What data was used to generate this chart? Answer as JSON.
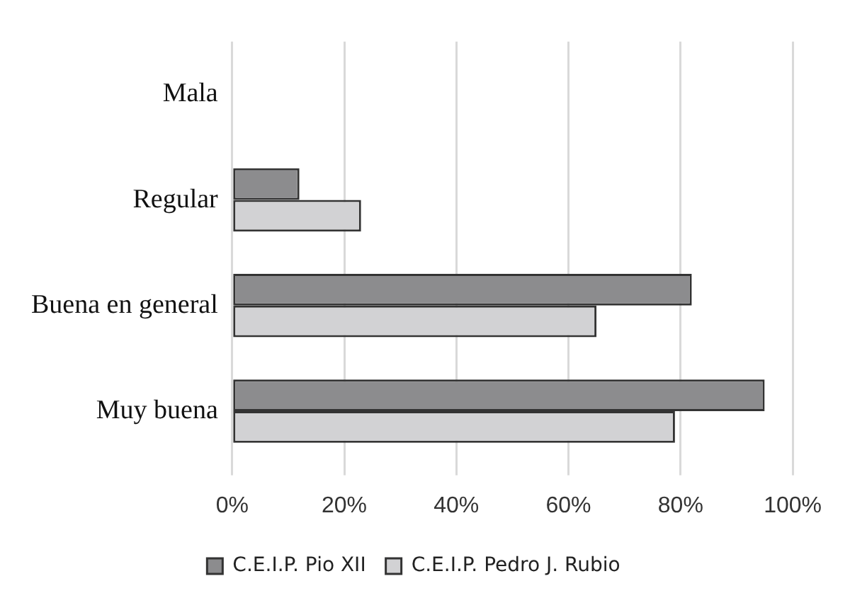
{
  "chart_data": {
    "type": "bar",
    "orientation": "horizontal",
    "categories": [
      "Mala",
      "Regular",
      "Buena en general",
      "Muy buena"
    ],
    "series": [
      {
        "name": "C.E.I.P. Pio XII",
        "color": "#8c8c8e",
        "values": [
          0,
          12,
          82,
          95
        ]
      },
      {
        "name": "C.E.I.P. Pedro J. Rubio",
        "color": "#d2d2d4",
        "values": [
          0,
          23,
          65,
          79
        ]
      }
    ],
    "xlim": [
      0,
      100
    ],
    "xticks": [
      {
        "value": 0,
        "label": "0%"
      },
      {
        "value": 20,
        "label": "20%"
      },
      {
        "value": 40,
        "label": "40%"
      },
      {
        "value": 60,
        "label": "60%"
      },
      {
        "value": 80,
        "label": "80%"
      },
      {
        "value": 100,
        "label": "100%"
      }
    ],
    "grid": "x",
    "legend": "bottom"
  }
}
